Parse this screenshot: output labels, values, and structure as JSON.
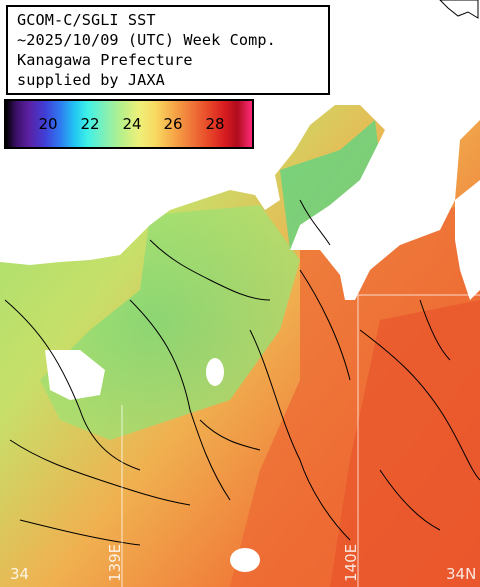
{
  "header": {
    "lines": [
      "GCOM-C/SGLI SST",
      "~2025/10/09 (UTC) Week Comp.",
      "Kanagawa Prefecture",
      "supplied by JAXA"
    ]
  },
  "colorbar": {
    "labels": [
      "20",
      "22",
      "24",
      "26",
      "28"
    ]
  },
  "grid": {
    "lon_labels": [
      "139E",
      "140E"
    ],
    "lat_labels": [
      "34",
      "34N"
    ]
  },
  "colors": {
    "land": "#ffffff",
    "contour": "#000000",
    "sst_cool": "#7fe08a",
    "sst_warm": "#f06a30"
  }
}
